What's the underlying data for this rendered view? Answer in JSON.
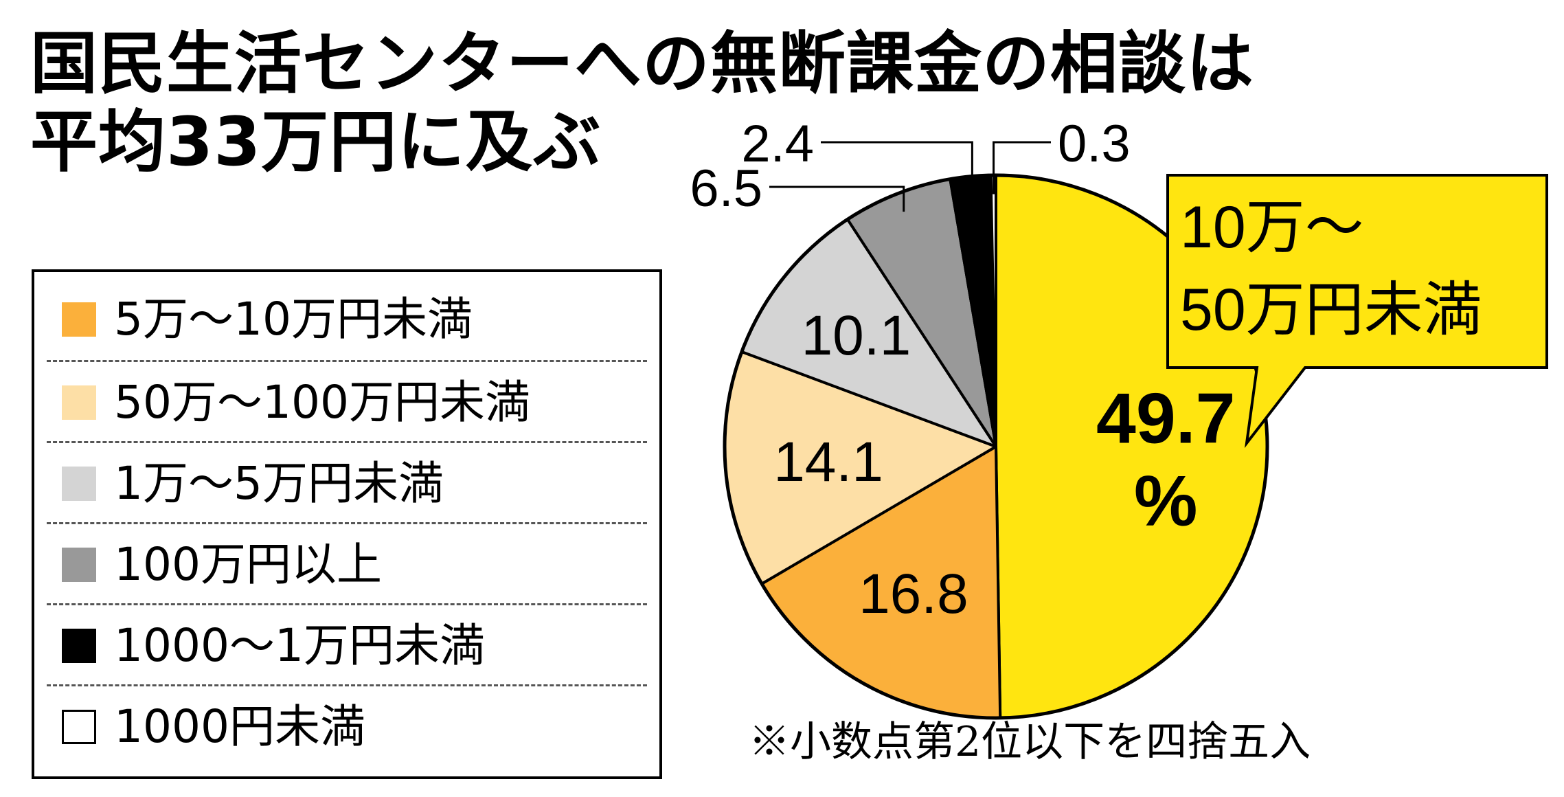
{
  "title": {
    "line1": "国民生活センターへの無断課金の相談は",
    "line2": "平均33万円に及ぶ"
  },
  "note": "※小数点第2位以下を四捨五入",
  "callout": {
    "line1": "10万～",
    "line2": "50万円未満"
  },
  "chart_data": {
    "type": "pie",
    "title": "国民生活センターへの無断課金の相談は平均33万円に及ぶ",
    "unit": "%",
    "slices": [
      {
        "label": "10万～50万円未満",
        "value": 49.7,
        "value_label": "49.7",
        "color": "#FFE510"
      },
      {
        "label": "5万～10万円未満",
        "value": 16.8,
        "value_label": "16.8",
        "color": "#FBB03B"
      },
      {
        "label": "50万～100万円未満",
        "value": 14.1,
        "value_label": "14.1",
        "color": "#FDDFA6"
      },
      {
        "label": "1万～5万円未満",
        "value": 10.1,
        "value_label": "10.1",
        "color": "#D4D4D4"
      },
      {
        "label": "100万円以上",
        "value": 6.5,
        "value_label": "6.5",
        "color": "#999999"
      },
      {
        "label": "1000～1万円未満",
        "value": 2.4,
        "value_label": "2.4",
        "color": "#000000"
      },
      {
        "label": "1000円未満",
        "value": 0.3,
        "value_label": "0.3",
        "color": "#FFFFFF"
      }
    ],
    "legend": [
      {
        "label": "5万～10万円未満",
        "color": "#FBB03B"
      },
      {
        "label": "50万～100万円未満",
        "color": "#FDDFA6"
      },
      {
        "label": "1万～5万円未満",
        "color": "#D4D4D4"
      },
      {
        "label": "100万円以上",
        "color": "#999999"
      },
      {
        "label": "1000～1万円未満",
        "color": "#000000"
      },
      {
        "label": "1000円未満",
        "color": "#FFFFFF"
      }
    ]
  }
}
